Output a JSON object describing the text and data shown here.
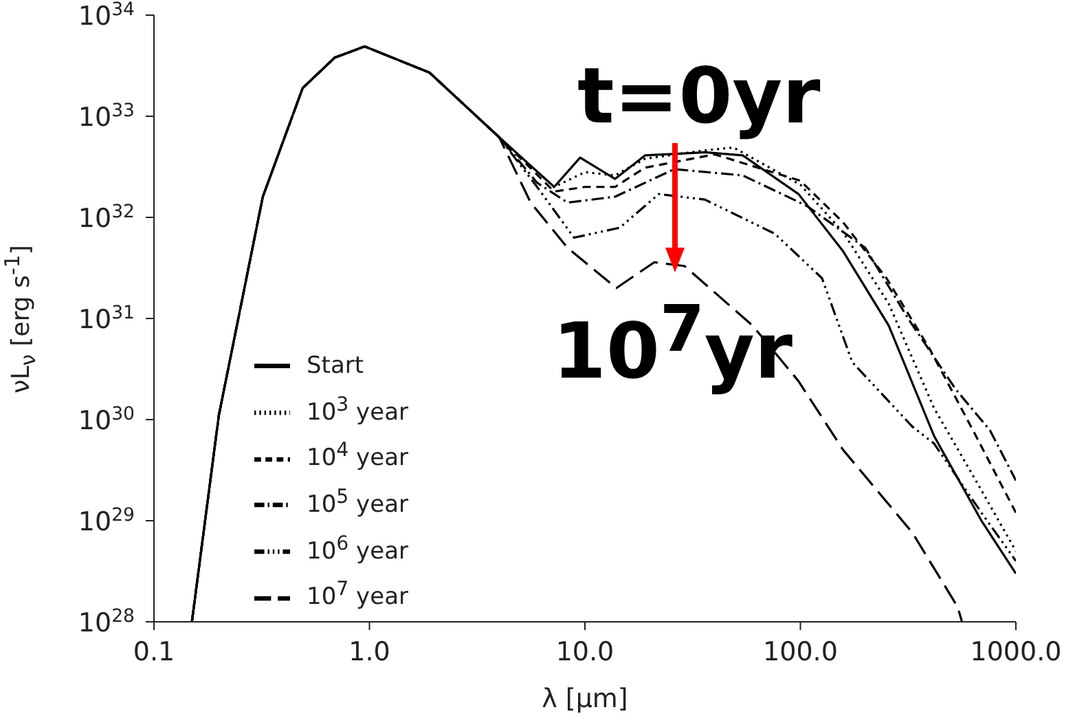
{
  "chart_data": {
    "type": "line",
    "xlabel": "λ [μm]",
    "ylabel": "νL$_{ν}$ [erg s$^{-1}$]",
    "log": "xy",
    "grid": false,
    "legend": "bottom left",
    "marker": "none",
    "xlim": [
      0.1,
      1000
    ],
    "xticks": [
      {
        "value": 0.1,
        "label": "0.1"
      },
      {
        "value": 1,
        "label": "1.0"
      },
      {
        "value": 10,
        "label": "10.0"
      },
      {
        "value": 100,
        "label": "100.0"
      },
      {
        "value": 1000,
        "label": "1000.0"
      }
    ],
    "ylim": [
      1e+28,
      1e+34
    ],
    "yticks": [
      {
        "value": 1e+28,
        "label": "10$^{28}$"
      },
      {
        "value": 1e+29,
        "label": "10$^{29}$"
      },
      {
        "value": 1e+30,
        "label": "10$^{30}$"
      },
      {
        "value": 1e+31,
        "label": "10$^{31}$"
      },
      {
        "value": 1e+32,
        "label": "10$^{32}$"
      },
      {
        "value": 1e+33,
        "label": "10$^{33}$"
      },
      {
        "value": 1e+34,
        "label": "10$^{34}$"
      }
    ],
    "annotations": [
      "t=0yr",
      "10$^{7}$yr"
    ],
    "series": [
      {
        "name": "Start",
        "color": "#000000",
        "line_style": "solid",
        "x": [
          0.15,
          0.2,
          0.32,
          0.49,
          0.69,
          0.95,
          1.9,
          4.0,
          7.2,
          9.5,
          13.8,
          19,
          36,
          54,
          98,
          158,
          257,
          417,
          692,
          1000
        ],
        "values": [
          1e+28,
          1.1e+30,
          1.6e+32,
          1.9e+33,
          3.8e+33,
          4.9e+33,
          2.7e+33,
          6.2e+32,
          2e+32,
          3.9e+32,
          2.4e+32,
          4.1e+32,
          4.4e+32,
          4.1e+32,
          1.7e+32,
          4.6e+31,
          8.5e+30,
          6.9e+29,
          1e+29,
          3e+28
        ]
      },
      {
        "name": "10$^{3}$ year",
        "color": "#000000",
        "line_style": "dotted",
        "x": [
          0.15,
          0.2,
          0.32,
          0.49,
          0.69,
          0.95,
          1.9,
          4.0,
          7.2,
          10,
          13.8,
          19,
          36,
          49,
          100,
          158,
          257,
          417,
          692,
          1000
        ],
        "values": [
          1e+28,
          1.1e+30,
          1.6e+32,
          1.9e+33,
          3.8e+33,
          4.9e+33,
          2.7e+33,
          6.2e+32,
          2e+32,
          2.8e+32,
          2.6e+32,
          3.8e+32,
          4.6e+32,
          4.9e+32,
          2.1e+32,
          7.1e+31,
          1.4e+31,
          1.3e+30,
          2e+29,
          5e+28
        ]
      },
      {
        "name": "10$^{4}$ year",
        "color": "#000000",
        "line_style": "dashed",
        "x": [
          0.15,
          0.2,
          0.32,
          0.49,
          0.69,
          0.95,
          1.9,
          4.0,
          7.2,
          10,
          13.8,
          19,
          40,
          100,
          158,
          251,
          398,
          631,
          1000
        ],
        "values": [
          1e+28,
          1.1e+30,
          1.6e+32,
          1.9e+33,
          3.8e+33,
          4.9e+33,
          2.7e+33,
          6.2e+32,
          1.8e+32,
          2e+32,
          2e+32,
          3.1e+32,
          4.2e+32,
          2.3e+32,
          8.9e+31,
          2.5e+31,
          5e+30,
          7.9e+29,
          1.2e+29
        ]
      },
      {
        "name": "10$^{5}$ year",
        "color": "#000000",
        "line_style": "dashdot",
        "x": [
          0.15,
          0.2,
          0.32,
          0.49,
          0.69,
          0.95,
          1.9,
          4.0,
          6.0,
          8.3,
          13.8,
          26,
          54,
          107,
          200,
          316,
          525,
          759,
          1000
        ],
        "values": [
          1e+28,
          1.1e+30,
          1.6e+32,
          1.9e+33,
          3.8e+33,
          4.9e+33,
          2.7e+33,
          6.2e+32,
          2.2e+32,
          1.4e+32,
          1.6e+32,
          3e+32,
          2.6e+32,
          1.3e+32,
          5e+31,
          1e+31,
          2e+30,
          7.8e+29,
          2.5e+29
        ]
      },
      {
        "name": "10$^{6}$ year",
        "color": "#000000",
        "line_style": "dashdotdot",
        "x": [
          0.15,
          0.2,
          0.32,
          0.49,
          0.69,
          0.95,
          1.9,
          4.0,
          6.0,
          8.9,
          14.5,
          22,
          36,
          76,
          126,
          174,
          331,
          417,
          692,
          1000
        ],
        "values": [
          1e+28,
          1.1e+30,
          1.6e+32,
          1.9e+33,
          3.8e+33,
          4.9e+33,
          2.7e+33,
          6.2e+32,
          2e+32,
          6.3e+31,
          7.9e+31,
          1.7e+32,
          1.5e+32,
          6.9e+31,
          2.5e+31,
          3.7e+30,
          8.5e+29,
          5.8e+29,
          1.2e+29,
          4e+28
        ]
      },
      {
        "name": "10$^{7}$ year",
        "color": "#000000",
        "line_style": "longdash",
        "x": [
          0.15,
          0.2,
          0.32,
          0.49,
          0.69,
          0.95,
          1.9,
          4.0,
          5.6,
          8.3,
          14,
          21,
          29,
          60,
          98,
          158,
          331,
          537,
          562
        ],
        "values": [
          1e+28,
          1.1e+30,
          1.6e+32,
          1.9e+33,
          3.8e+33,
          4.9e+33,
          2.7e+33,
          6.2e+32,
          1.4e+32,
          5e+31,
          2e+31,
          3.6e+31,
          3.3e+31,
          8.5e+30,
          2.4e+30,
          5e+29,
          7.6e+28,
          1.4e+28,
          1e+28
        ]
      }
    ]
  }
}
